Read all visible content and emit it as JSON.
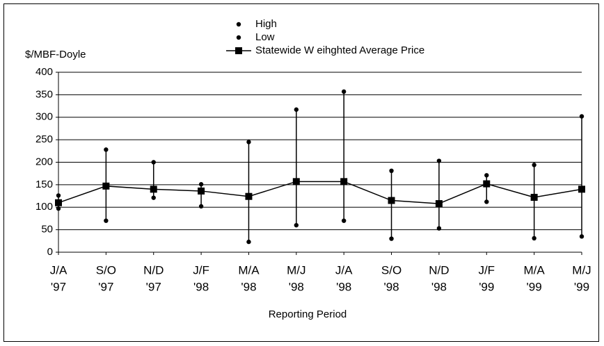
{
  "chart_data": {
    "type": "hilo",
    "y_axis_label": "$/MBF-Doyle",
    "x_axis_label": "Reporting Period",
    "categories": [
      [
        "J/A",
        "'97"
      ],
      [
        "S/O",
        "'97"
      ],
      [
        "N/D",
        "'97"
      ],
      [
        "J/F",
        "'98"
      ],
      [
        "M/A",
        "'98"
      ],
      [
        "M/J",
        "'98"
      ],
      [
        "J/A",
        "'98"
      ],
      [
        "S/O",
        "'98"
      ],
      [
        "N/D",
        "'98"
      ],
      [
        "J/F",
        "'99"
      ],
      [
        "M/A",
        "'99"
      ],
      [
        "M/J",
        "'99"
      ]
    ],
    "series": [
      {
        "name": "High",
        "color": "#000000",
        "values": [
          126,
          228,
          200,
          151,
          245,
          317,
          357,
          181,
          203,
          171,
          194,
          302
        ]
      },
      {
        "name": "Low",
        "color": "#000000",
        "values": [
          97,
          70,
          121,
          102,
          23,
          60,
          70,
          30,
          53,
          112,
          31,
          35
        ]
      },
      {
        "name": "Statewide W eihghted Average Price",
        "color": "#000000",
        "values": [
          110,
          147,
          140,
          136,
          124,
          157,
          157,
          115,
          108,
          152,
          122,
          140
        ]
      }
    ],
    "ylim": [
      0,
      400
    ],
    "yticks": [
      0,
      50,
      100,
      150,
      200,
      250,
      300,
      350,
      400
    ],
    "grid": true
  }
}
